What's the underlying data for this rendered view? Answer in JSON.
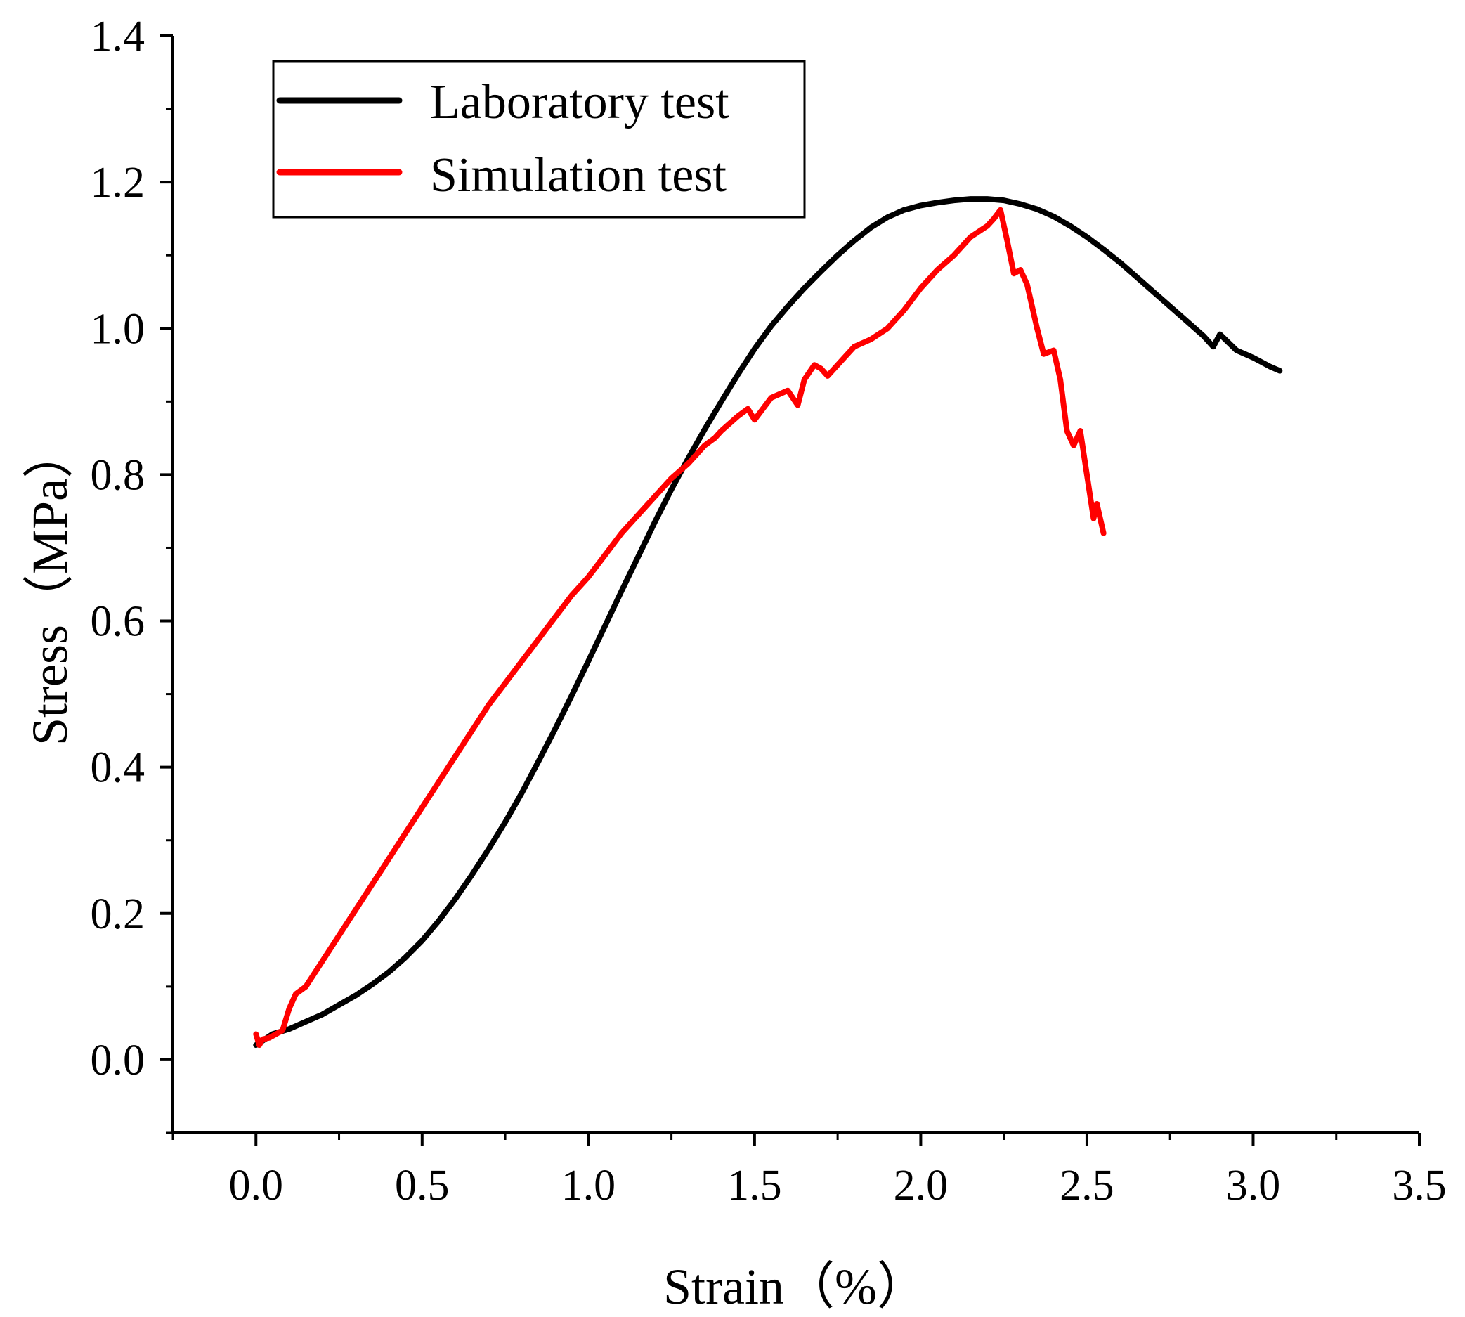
{
  "chart_data": {
    "type": "line",
    "title": "",
    "xlabel": "Strain（%）",
    "ylabel": "Stress（MPa）",
    "xlim": [
      -0.25,
      3.5
    ],
    "ylim": [
      -0.1,
      1.4
    ],
    "xticks": [
      "0.0",
      "0.5",
      "1.0",
      "1.5",
      "2.0",
      "2.5",
      "3.0",
      "3.5"
    ],
    "yticks": [
      "0.0",
      "0.2",
      "0.4",
      "0.6",
      "0.8",
      "1.0",
      "1.2",
      "1.4"
    ],
    "grid": false,
    "legend_position": "top-left",
    "series": [
      {
        "name": "Laboratory test",
        "color": "#000000",
        "x": [
          0.0,
          0.05,
          0.1,
          0.15,
          0.2,
          0.25,
          0.3,
          0.35,
          0.4,
          0.45,
          0.5,
          0.55,
          0.6,
          0.65,
          0.7,
          0.75,
          0.8,
          0.85,
          0.9,
          0.95,
          1.0,
          1.05,
          1.1,
          1.15,
          1.2,
          1.25,
          1.3,
          1.35,
          1.4,
          1.45,
          1.5,
          1.55,
          1.6,
          1.65,
          1.7,
          1.75,
          1.8,
          1.85,
          1.9,
          1.95,
          2.0,
          2.05,
          2.1,
          2.15,
          2.2,
          2.25,
          2.3,
          2.35,
          2.4,
          2.45,
          2.5,
          2.55,
          2.6,
          2.65,
          2.7,
          2.75,
          2.8,
          2.85,
          2.88,
          2.9,
          2.95,
          3.0,
          3.05,
          3.08
        ],
        "y": [
          0.02,
          0.035,
          0.042,
          0.052,
          0.062,
          0.075,
          0.088,
          0.103,
          0.12,
          0.14,
          0.163,
          0.19,
          0.22,
          0.253,
          0.288,
          0.325,
          0.365,
          0.408,
          0.452,
          0.498,
          0.545,
          0.593,
          0.641,
          0.688,
          0.735,
          0.78,
          0.822,
          0.862,
          0.9,
          0.937,
          0.972,
          1.003,
          1.03,
          1.055,
          1.078,
          1.1,
          1.12,
          1.138,
          1.152,
          1.162,
          1.168,
          1.172,
          1.175,
          1.177,
          1.177,
          1.175,
          1.17,
          1.163,
          1.153,
          1.14,
          1.125,
          1.108,
          1.09,
          1.07,
          1.05,
          1.03,
          1.01,
          0.99,
          0.975,
          0.992,
          0.97,
          0.96,
          0.948,
          0.942
        ]
      },
      {
        "name": "Simulation test",
        "color": "#ff0000",
        "x": [
          0.0,
          0.01,
          0.02,
          0.04,
          0.06,
          0.08,
          0.1,
          0.12,
          0.15,
          0.2,
          0.25,
          0.3,
          0.35,
          0.4,
          0.45,
          0.5,
          0.55,
          0.6,
          0.65,
          0.7,
          0.75,
          0.8,
          0.85,
          0.9,
          0.95,
          1.0,
          1.05,
          1.1,
          1.15,
          1.2,
          1.25,
          1.3,
          1.35,
          1.38,
          1.4,
          1.45,
          1.48,
          1.5,
          1.55,
          1.6,
          1.63,
          1.65,
          1.68,
          1.7,
          1.72,
          1.75,
          1.8,
          1.85,
          1.9,
          1.95,
          2.0,
          2.05,
          2.1,
          2.15,
          2.2,
          2.22,
          2.24,
          2.26,
          2.28,
          2.3,
          2.32,
          2.35,
          2.37,
          2.4,
          2.42,
          2.44,
          2.46,
          2.48,
          2.5,
          2.52,
          2.53,
          2.55
        ],
        "y": [
          0.035,
          0.02,
          0.028,
          0.03,
          0.035,
          0.04,
          0.07,
          0.09,
          0.1,
          0.135,
          0.17,
          0.205,
          0.24,
          0.275,
          0.31,
          0.345,
          0.38,
          0.415,
          0.45,
          0.485,
          0.515,
          0.545,
          0.575,
          0.605,
          0.635,
          0.66,
          0.69,
          0.72,
          0.745,
          0.77,
          0.795,
          0.815,
          0.84,
          0.85,
          0.86,
          0.88,
          0.89,
          0.875,
          0.905,
          0.915,
          0.895,
          0.93,
          0.95,
          0.945,
          0.935,
          0.95,
          0.975,
          0.985,
          1.0,
          1.025,
          1.055,
          1.08,
          1.1,
          1.125,
          1.14,
          1.15,
          1.162,
          1.12,
          1.075,
          1.08,
          1.06,
          1.0,
          0.965,
          0.97,
          0.93,
          0.86,
          0.84,
          0.86,
          0.8,
          0.74,
          0.76,
          0.72
        ]
      }
    ]
  }
}
